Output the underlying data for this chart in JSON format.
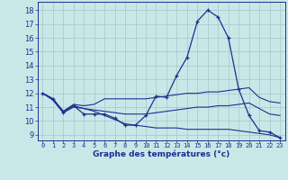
{
  "title": "Graphe des températures (°c)",
  "background_color": "#c8e8e8",
  "grid_color": "#a0c8c8",
  "line_color": "#1a3090",
  "yticks": [
    9,
    10,
    11,
    12,
    13,
    14,
    15,
    16,
    17,
    18
  ],
  "ylim_min": 8.6,
  "ylim_max": 18.6,
  "curve1": [
    12.0,
    11.6,
    10.6,
    11.1,
    10.5,
    10.5,
    10.5,
    10.2,
    9.7,
    9.7,
    10.4,
    11.8,
    11.7,
    13.3,
    14.6,
    17.2,
    18.0,
    17.5,
    16.0,
    12.3,
    10.4,
    9.3,
    9.2,
    8.8
  ],
  "curve2": [
    12.0,
    11.6,
    10.7,
    11.2,
    11.1,
    11.2,
    11.6,
    11.6,
    11.6,
    11.6,
    11.6,
    11.7,
    11.8,
    11.9,
    12.0,
    12.0,
    12.1,
    12.1,
    12.2,
    12.3,
    12.4,
    11.7,
    11.4,
    11.3
  ],
  "curve3": [
    12.0,
    11.6,
    10.7,
    11.1,
    10.9,
    10.8,
    10.7,
    10.6,
    10.5,
    10.5,
    10.5,
    10.6,
    10.7,
    10.8,
    10.9,
    11.0,
    11.0,
    11.1,
    11.1,
    11.2,
    11.3,
    10.9,
    10.5,
    10.4
  ],
  "curve4": [
    12.0,
    11.5,
    10.6,
    11.0,
    10.9,
    10.7,
    10.4,
    10.1,
    9.8,
    9.7,
    9.6,
    9.5,
    9.5,
    9.5,
    9.4,
    9.4,
    9.4,
    9.4,
    9.4,
    9.3,
    9.2,
    9.1,
    9.0,
    8.8
  ]
}
